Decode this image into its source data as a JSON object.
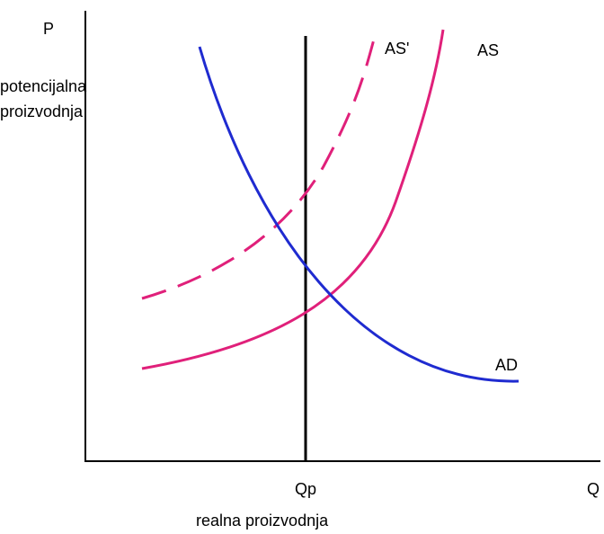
{
  "axes": {
    "y_label": "P",
    "x_label": "Q"
  },
  "potential_output": {
    "line1": "potencijalna",
    "line2": "proizvodnja"
  },
  "curves": {
    "as_shifted": "AS'",
    "as": "AS",
    "ad": "AD"
  },
  "qp_label": "Qp",
  "x_caption": "realna proizvodnja"
}
